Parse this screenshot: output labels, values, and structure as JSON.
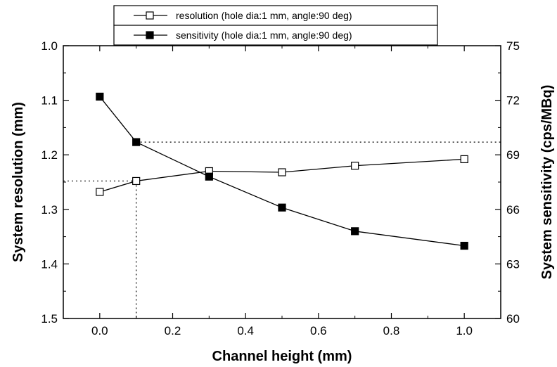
{
  "chart_data": {
    "type": "line",
    "x": [
      0.0,
      0.1,
      0.3,
      0.5,
      0.7,
      1.0
    ],
    "xlabel": "Channel height (mm)",
    "xlim": [
      -0.1,
      1.1
    ],
    "xticks": [
      0.0,
      0.2,
      0.4,
      0.6,
      0.8,
      1.0
    ],
    "xtick_labels": [
      "0.0",
      "0.2",
      "0.4",
      "0.6",
      "0.8",
      "1.0"
    ],
    "y_left": {
      "label": "System resolution (mm)",
      "lim": [
        1.0,
        1.5
      ],
      "inverted": true,
      "ticks": [
        1.0,
        1.1,
        1.2,
        1.3,
        1.4,
        1.5
      ],
      "tick_labels": [
        "1.0",
        "1.1",
        "1.2",
        "1.3",
        "1.4",
        "1.5"
      ]
    },
    "y_right": {
      "label": "System sensitivity (cps/MBq)",
      "lim": [
        60,
        75
      ],
      "ticks": [
        60,
        63,
        66,
        69,
        72,
        75
      ],
      "tick_labels": [
        "60",
        "63",
        "66",
        "69",
        "72",
        "75"
      ]
    },
    "series": [
      {
        "name": "resolution (hole dia:1 mm, angle:90 deg)",
        "axis": "left",
        "marker": "open-square",
        "values": [
          1.268,
          1.248,
          1.23,
          1.232,
          1.22,
          1.208
        ]
      },
      {
        "name": "sensitivity (hole dia:1 mm, angle:90 deg)",
        "axis": "right",
        "marker": "filled-square",
        "values": [
          72.2,
          69.7,
          67.8,
          66.1,
          64.8,
          64.0
        ]
      }
    ],
    "reference_lines": [
      {
        "style": "dotted",
        "orientation": "vertical",
        "x": 0.1,
        "axis": "left",
        "from": 1.248,
        "to": 1.5
      },
      {
        "style": "dotted",
        "orientation": "horizontal",
        "axis": "left",
        "y": 1.248,
        "x_from": -0.1,
        "x_to": 0.1
      },
      {
        "style": "dotted",
        "orientation": "horizontal",
        "axis": "right",
        "y": 69.7,
        "x_from": 0.1,
        "x_to": 1.1
      }
    ],
    "legend_position": "top-center",
    "grid": false
  },
  "colors": {
    "line": "#000000",
    "background": "#ffffff"
  }
}
